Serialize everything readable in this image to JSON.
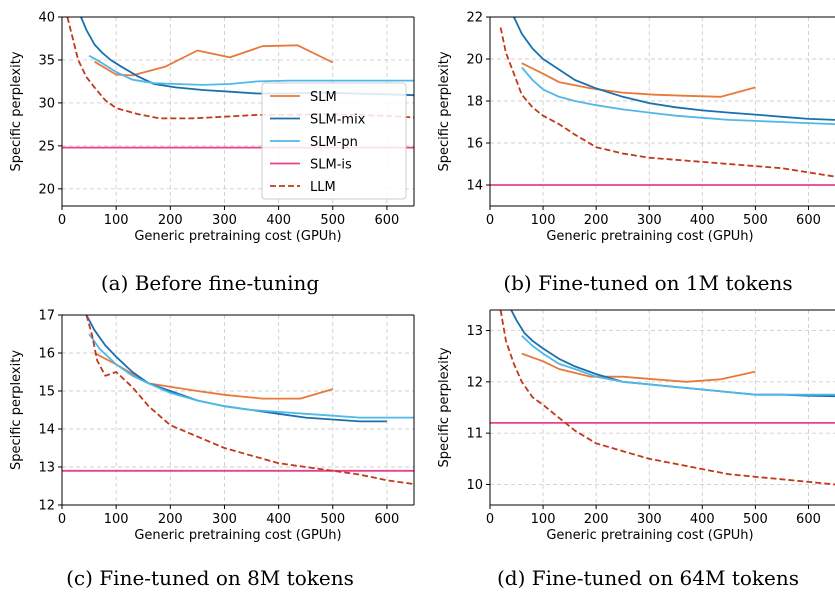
{
  "colors": {
    "SLM": "#e8793a",
    "SLM-mix": "#1a6fad",
    "SLM-pn": "#4fb8e8",
    "SLM-is": "#e8418a",
    "LLM": "#c0391b"
  },
  "legend": {
    "position": "upper-right",
    "entries": [
      {
        "name": "SLM",
        "style": "solid"
      },
      {
        "name": "SLM-mix",
        "style": "solid"
      },
      {
        "name": "SLM-pn",
        "style": "solid"
      },
      {
        "name": "SLM-is",
        "style": "solid"
      },
      {
        "name": "LLM",
        "style": "dashed"
      }
    ]
  },
  "chart_data": [
    {
      "type": "line",
      "caption": "(a) Before fine-tuning",
      "xlabel": "Generic pretraining cost (GPUh)",
      "ylabel": "Specific perplexity",
      "xlim": [
        0,
        650
      ],
      "ylim": [
        18,
        40
      ],
      "xticks": [
        0,
        100,
        200,
        300,
        400,
        500,
        600
      ],
      "yticks": [
        20,
        25,
        30,
        35,
        40
      ],
      "grid": true,
      "legend": true,
      "series": [
        {
          "name": "SLM",
          "x": [
            60,
            100,
            130,
            190,
            250,
            310,
            370,
            435,
            500
          ],
          "y": [
            34.8,
            33.3,
            33.2,
            34.2,
            36.1,
            35.3,
            36.6,
            36.7,
            34.7
          ]
        },
        {
          "name": "SLM-mix",
          "x": [
            35,
            45,
            60,
            75,
            90,
            110,
            140,
            170,
            210,
            260,
            310,
            360,
            420,
            480,
            540,
            600,
            650
          ],
          "y": [
            40,
            38.5,
            36.8,
            35.8,
            35,
            34.2,
            33.1,
            32.2,
            31.8,
            31.5,
            31.3,
            31.1,
            31.1,
            31.2,
            31.1,
            31,
            30.9
          ]
        },
        {
          "name": "SLM-pn",
          "x": [
            50,
            70,
            100,
            130,
            170,
            210,
            260,
            310,
            360,
            420,
            480,
            540,
            600,
            650
          ],
          "y": [
            35.5,
            34.8,
            33.6,
            32.7,
            32.3,
            32.2,
            32.1,
            32.2,
            32.5,
            32.6,
            32.6,
            32.6,
            32.6,
            32.6
          ]
        },
        {
          "name": "SLM-is",
          "x": [
            0,
            650
          ],
          "y": [
            24.8,
            24.8
          ]
        },
        {
          "name": "LLM",
          "x": [
            10,
            20,
            30,
            45,
            60,
            80,
            100,
            140,
            180,
            240,
            300,
            360,
            420,
            480,
            540,
            600,
            650
          ],
          "y": [
            40,
            37.5,
            35,
            33,
            31.8,
            30.3,
            29.4,
            28.7,
            28.2,
            28.2,
            28.4,
            28.6,
            28.6,
            28.7,
            28.6,
            28.5,
            28.3
          ]
        }
      ]
    },
    {
      "type": "line",
      "caption": "(b) Fine-tuned on 1M tokens",
      "xlabel": "Generic pretraining cost (GPUh)",
      "ylabel": "Specific perplexity",
      "xlim": [
        0,
        650
      ],
      "ylim": [
        13,
        22
      ],
      "xticks": [
        0,
        100,
        200,
        300,
        400,
        500,
        600
      ],
      "yticks": [
        14,
        16,
        18,
        20,
        22
      ],
      "grid": true,
      "legend": false,
      "series": [
        {
          "name": "SLM",
          "x": [
            60,
            100,
            130,
            190,
            250,
            310,
            370,
            435,
            500
          ],
          "y": [
            19.8,
            19.3,
            18.9,
            18.6,
            18.4,
            18.3,
            18.25,
            18.2,
            18.65
          ]
        },
        {
          "name": "SLM-mix",
          "x": [
            45,
            60,
            80,
            100,
            130,
            160,
            200,
            250,
            300,
            350,
            400,
            450,
            500,
            550,
            600,
            650
          ],
          "y": [
            22,
            21.2,
            20.5,
            20,
            19.5,
            19,
            18.6,
            18.2,
            17.9,
            17.7,
            17.55,
            17.45,
            17.35,
            17.25,
            17.15,
            17.1
          ]
        },
        {
          "name": "SLM-pn",
          "x": [
            60,
            80,
            100,
            130,
            160,
            200,
            250,
            300,
            350,
            400,
            450,
            500,
            550,
            600,
            650
          ],
          "y": [
            19.6,
            19,
            18.55,
            18.2,
            18,
            17.8,
            17.6,
            17.45,
            17.3,
            17.2,
            17.1,
            17.05,
            17,
            16.95,
            16.9
          ]
        },
        {
          "name": "SLM-is",
          "x": [
            0,
            650
          ],
          "y": [
            14,
            14
          ]
        },
        {
          "name": "LLM",
          "x": [
            20,
            30,
            45,
            60,
            80,
            100,
            130,
            160,
            200,
            250,
            300,
            350,
            400,
            450,
            500,
            550,
            600,
            650
          ],
          "y": [
            21.5,
            20.3,
            19.3,
            18.3,
            17.7,
            17.3,
            16.9,
            16.4,
            15.8,
            15.5,
            15.3,
            15.2,
            15.1,
            15,
            14.9,
            14.8,
            14.6,
            14.4
          ]
        }
      ]
    },
    {
      "type": "line",
      "caption": "(c) Fine-tuned on 8M tokens",
      "xlabel": "Generic pretraining cost (GPUh)",
      "ylabel": "Specific perplexity",
      "xlim": [
        0,
        650
      ],
      "ylim": [
        12,
        17
      ],
      "xticks": [
        0,
        100,
        200,
        300,
        400,
        500,
        600
      ],
      "yticks": [
        12,
        13,
        14,
        15,
        16,
        17
      ],
      "grid": true,
      "legend": false,
      "series": [
        {
          "name": "SLM",
          "x": [
            60,
            100,
            160,
            250,
            300,
            370,
            440,
            500
          ],
          "y": [
            16,
            15.7,
            15.2,
            15,
            14.9,
            14.8,
            14.8,
            15.05
          ]
        },
        {
          "name": "SLM-mix",
          "x": [
            45,
            60,
            80,
            100,
            130,
            160,
            200,
            250,
            300,
            350,
            400,
            450,
            500,
            550,
            600
          ],
          "y": [
            17,
            16.6,
            16.2,
            15.9,
            15.5,
            15.2,
            15,
            14.75,
            14.6,
            14.5,
            14.4,
            14.3,
            14.25,
            14.2,
            14.2
          ]
        },
        {
          "name": "SLM-pn",
          "x": [
            50,
            70,
            100,
            130,
            160,
            200,
            250,
            300,
            350,
            400,
            450,
            500,
            550,
            600,
            650
          ],
          "y": [
            16.5,
            16.1,
            15.7,
            15.4,
            15.2,
            14.95,
            14.75,
            14.6,
            14.5,
            14.45,
            14.4,
            14.35,
            14.3,
            14.3,
            14.3
          ]
        },
        {
          "name": "SLM-is",
          "x": [
            0,
            650
          ],
          "y": [
            12.9,
            12.9
          ]
        },
        {
          "name": "LLM",
          "x": [
            45,
            55,
            65,
            80,
            100,
            130,
            160,
            200,
            250,
            300,
            350,
            400,
            450,
            500,
            550,
            600,
            650
          ],
          "y": [
            17,
            16.5,
            15.8,
            15.4,
            15.5,
            15.1,
            14.6,
            14.1,
            13.8,
            13.5,
            13.3,
            13.1,
            13,
            12.9,
            12.8,
            12.65,
            12.55
          ]
        }
      ]
    },
    {
      "type": "line",
      "caption": "(d) Fine-tuned on 64M tokens",
      "xlabel": "Generic pretraining cost (GPUh)",
      "ylabel": "Specific perplexity",
      "xlim": [
        0,
        650
      ],
      "ylim": [
        9.6,
        13.4
      ],
      "xticks": [
        0,
        100,
        200,
        300,
        400,
        500,
        600
      ],
      "yticks": [
        10,
        11,
        12,
        13
      ],
      "grid": true,
      "legend": false,
      "series": [
        {
          "name": "SLM",
          "x": [
            60,
            100,
            130,
            190,
            250,
            310,
            370,
            435,
            500
          ],
          "y": [
            12.55,
            12.4,
            12.25,
            12.1,
            12.1,
            12.05,
            12,
            12.05,
            12.2
          ]
        },
        {
          "name": "SLM-mix",
          "x": [
            40,
            50,
            65,
            80,
            100,
            130,
            160,
            200,
            250,
            300,
            350,
            400,
            450,
            500,
            550,
            600,
            650
          ],
          "y": [
            13.4,
            13.2,
            12.95,
            12.8,
            12.65,
            12.45,
            12.3,
            12.15,
            12,
            11.95,
            11.9,
            11.85,
            11.8,
            11.75,
            11.75,
            11.73,
            11.72
          ]
        },
        {
          "name": "SLM-pn",
          "x": [
            60,
            80,
            100,
            130,
            160,
            200,
            250,
            300,
            350,
            400,
            450,
            500,
            550,
            600,
            650
          ],
          "y": [
            12.9,
            12.7,
            12.55,
            12.35,
            12.25,
            12.1,
            12,
            11.95,
            11.9,
            11.85,
            11.8,
            11.75,
            11.75,
            11.75,
            11.75
          ]
        },
        {
          "name": "SLM-is",
          "x": [
            0,
            650
          ],
          "y": [
            11.2,
            11.2
          ]
        },
        {
          "name": "LLM",
          "x": [
            20,
            30,
            45,
            60,
            80,
            100,
            130,
            160,
            200,
            250,
            300,
            350,
            400,
            450,
            500,
            550,
            600,
            650
          ],
          "y": [
            13.4,
            12.8,
            12.35,
            12,
            11.7,
            11.55,
            11.3,
            11.05,
            10.8,
            10.65,
            10.5,
            10.4,
            10.3,
            10.2,
            10.15,
            10.1,
            10.05,
            10
          ]
        }
      ]
    }
  ]
}
